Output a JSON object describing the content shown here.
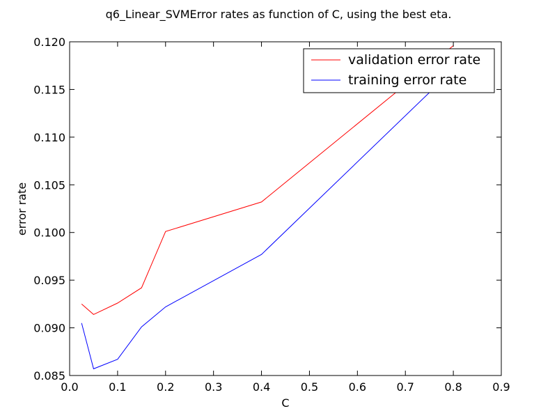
{
  "chart_data": {
    "type": "line",
    "title": "q6_Linear_SVMError rates as function of C, using the best eta.",
    "xlabel": "C",
    "ylabel": "error rate",
    "xlim": [
      0.0,
      0.9
    ],
    "ylim": [
      0.085,
      0.12
    ],
    "xticks": [
      "0.0",
      "0.1",
      "0.2",
      "0.3",
      "0.4",
      "0.5",
      "0.6",
      "0.7",
      "0.8",
      "0.9"
    ],
    "yticks": [
      "0.085",
      "0.090",
      "0.095",
      "0.100",
      "0.105",
      "0.110",
      "0.115",
      "0.120"
    ],
    "grid": false,
    "legend_position": "top-right",
    "series": [
      {
        "name": "validation error rate",
        "color": "#ff0000",
        "x": [
          0.025,
          0.05,
          0.1,
          0.15,
          0.2,
          0.4,
          0.8
        ],
        "y": [
          0.0925,
          0.0914,
          0.0926,
          0.0942,
          0.1001,
          0.1032,
          0.1196
        ]
      },
      {
        "name": "training error rate",
        "color": "#0000ff",
        "x": [
          0.025,
          0.05,
          0.1,
          0.15,
          0.2,
          0.4,
          0.8
        ],
        "y": [
          0.0905,
          0.0857,
          0.0867,
          0.0901,
          0.0922,
          0.0977,
          0.1171
        ]
      }
    ]
  }
}
